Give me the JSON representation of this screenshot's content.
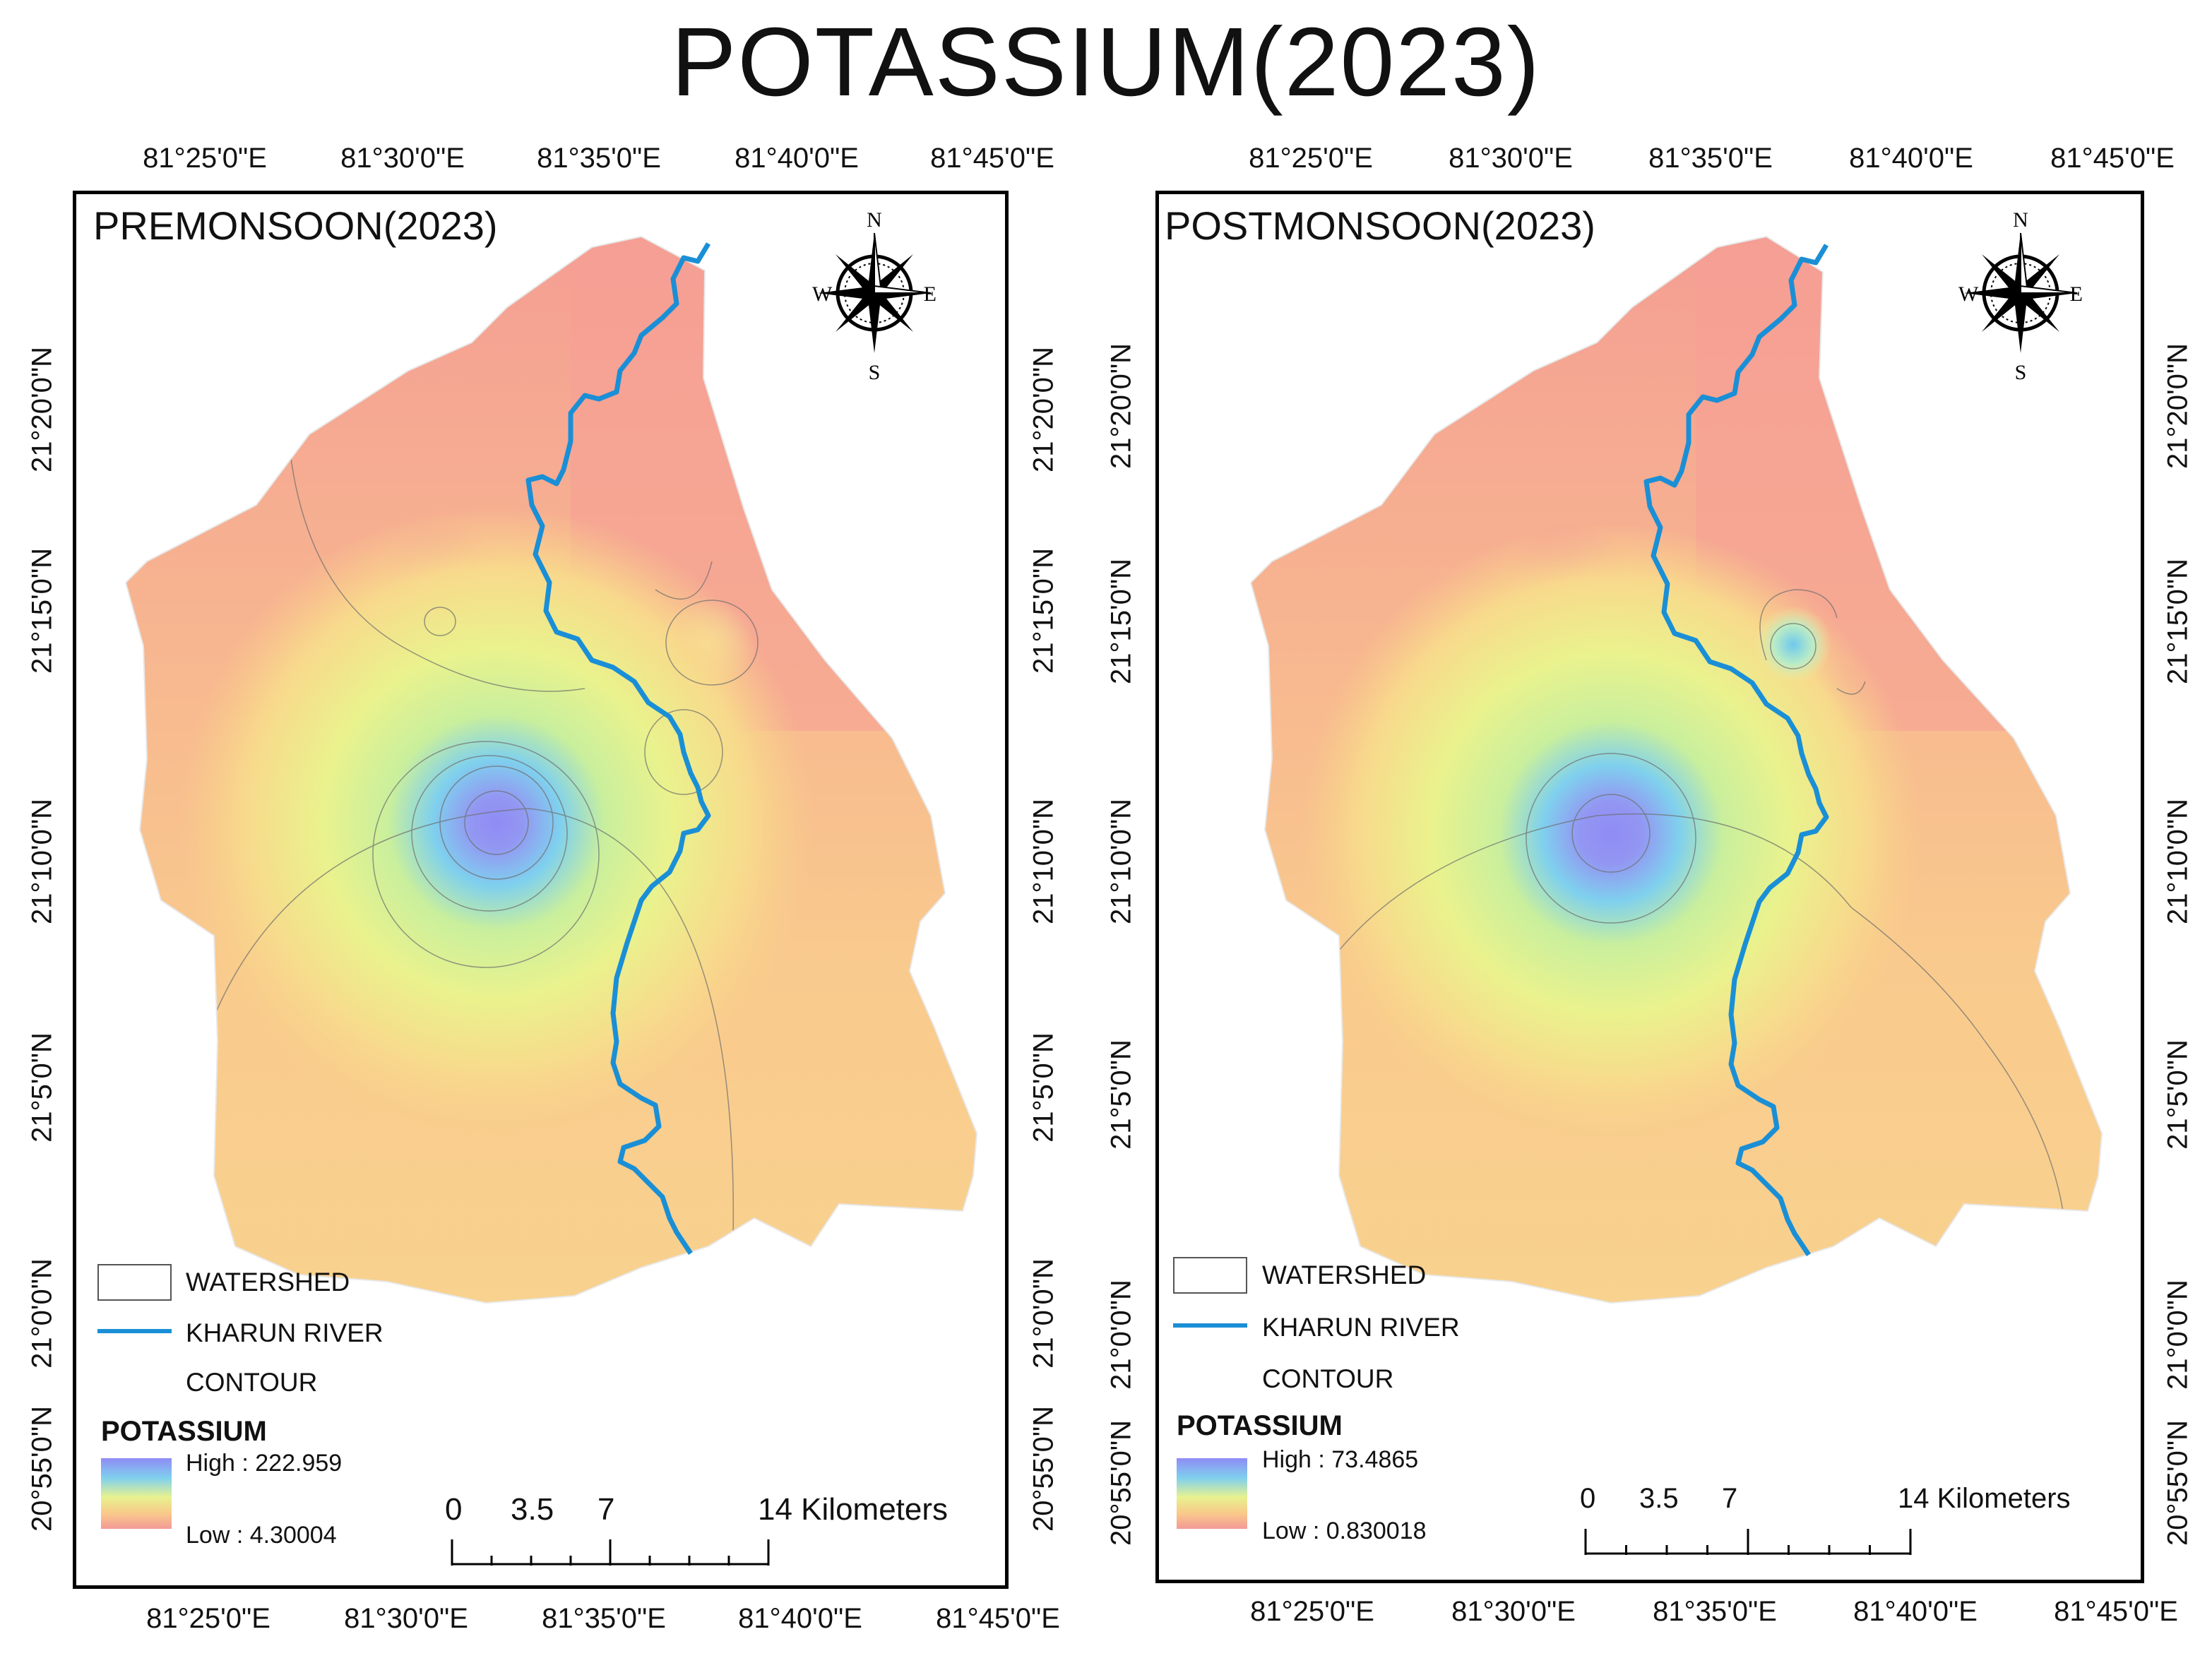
{
  "title": "POTASSIUM(2023)",
  "lon_labels": [
    "81°25'0\"E",
    "81°30'0\"E",
    "81°35'0\"E",
    "81°40'0\"E",
    "81°45'0\"E"
  ],
  "lat_labels": [
    "21°20'0\"N",
    "21°15'0\"N",
    "21°10'0\"N",
    "21°5'0\"N",
    "21°0'0\"N",
    "20°55'0\"N"
  ],
  "panels": [
    {
      "season": "PREMONSOON(2023)",
      "legend": {
        "watershed": "WATERSHED",
        "river": "KHARUN RIVER",
        "contour": "CONTOUR",
        "heading": "POTASSIUM",
        "high": "High : 222.959",
        "low": "Low : 4.30004"
      },
      "scalebar": {
        "ticks": [
          "0",
          "3.5",
          "7"
        ],
        "end": "14 Kilometers"
      }
    },
    {
      "season": "POSTMONSOON(2023)",
      "legend": {
        "watershed": "WATERSHED",
        "river": "KHARUN RIVER",
        "contour": "CONTOUR",
        "heading": "POTASSIUM",
        "high": "High : 73.4865",
        "low": "Low : 0.830018"
      },
      "scalebar": {
        "ticks": [
          "0",
          "3.5",
          "7"
        ],
        "end": "14 Kilometers"
      }
    }
  ],
  "compass": {
    "n": "N",
    "s": "S",
    "e": "E",
    "w": "W"
  },
  "colors": {
    "high": "#8f8cf5",
    "mid": "#e7f28f",
    "low": "#f39a96",
    "river": "#1a8fd6"
  }
}
